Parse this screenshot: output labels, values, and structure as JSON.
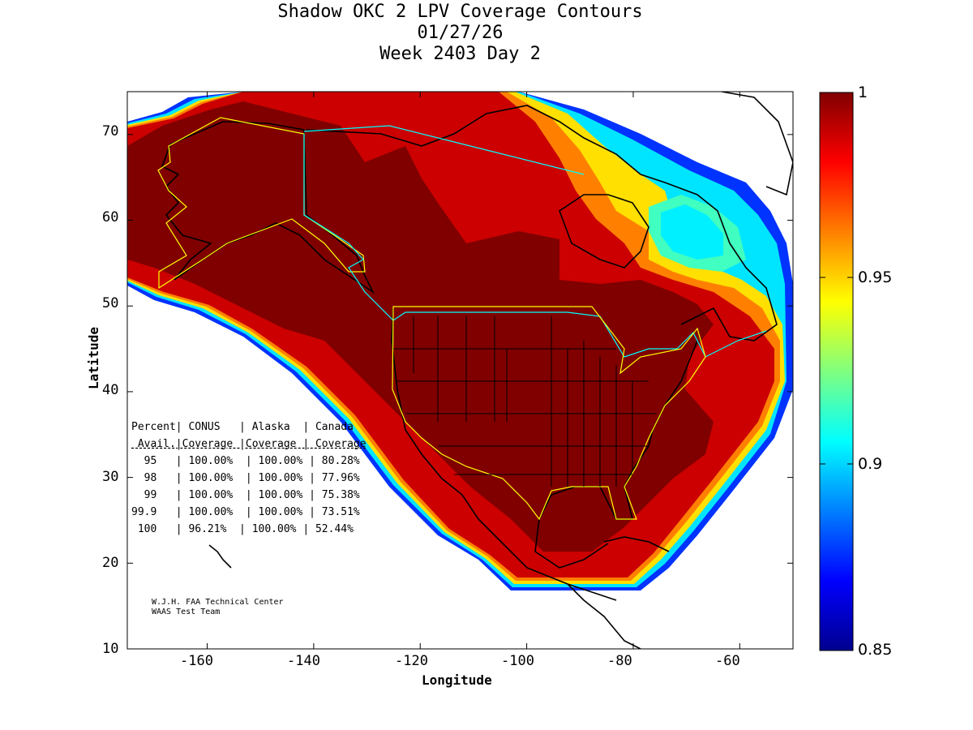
{
  "title": {
    "line1": "Shadow OKC 2 LPV Coverage Contours",
    "line2": "01/27/26",
    "line3": "Week 2403 Day 2"
  },
  "axes": {
    "xlabel": "Longitude",
    "ylabel": "Latitude",
    "xticks": [
      "-160",
      "-140",
      "-120",
      "-100",
      "-80",
      "-60"
    ],
    "yticks": [
      "70",
      "60",
      "50",
      "40",
      "30",
      "20",
      "10"
    ],
    "xlim": [
      -175,
      -50
    ],
    "ylim": [
      10,
      75
    ]
  },
  "colorbar": {
    "labels": [
      "1",
      "0.95",
      "0.9",
      "0.85"
    ],
    "range": [
      0.85,
      1.0
    ],
    "colormap": "jet"
  },
  "stats_table": {
    "header1": "Percent| CONUS   | Alaska  | Canada",
    "header2": " Avail.|Coverage |Coverage | Coverage",
    "divider": "-----------------------------------------",
    "rows": [
      "  95   | 100.00%  | 100.00% | 80.28%",
      "  98   | 100.00%  | 100.00% | 77.96%",
      "  99   | 100.00%  | 100.00% | 75.38%",
      "99.9   | 100.00%  | 100.00% | 73.51%",
      " 100   | 96.21%  | 100.00% | 52.44%"
    ]
  },
  "credit": {
    "line1": "W.J.H. FAA Technical Center",
    "line2": "WAAS Test Team"
  },
  "colors": {
    "full": "#800000",
    "high": "#c80000",
    "edge_orange": "#ff8c00",
    "edge_yellow": "#ffe600",
    "edge_cyan": "#00e5ff",
    "edge_blue": "#0040ff",
    "boundary_yellow": "#ffff00",
    "boundary_cyan": "#00ffff"
  }
}
